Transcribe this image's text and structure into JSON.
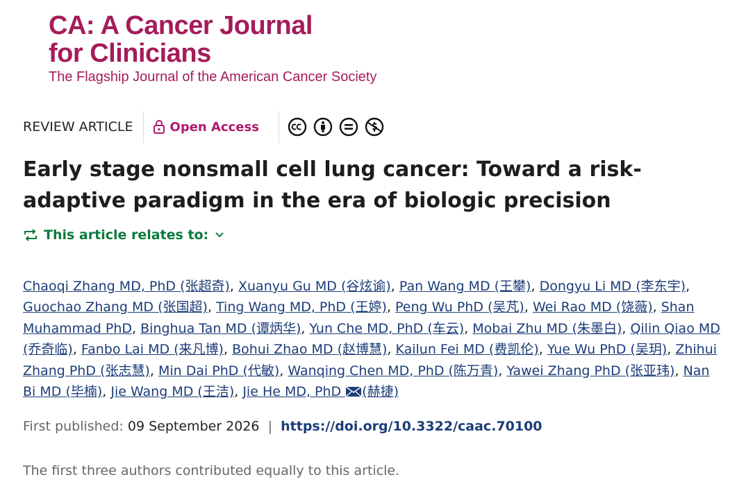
{
  "journal": {
    "title_line1": "CA: A Cancer Journal",
    "title_line2": "for Clinicians",
    "tagline": "The Flagship Journal of the American Cancer Society"
  },
  "article": {
    "type": "REVIEW ARTICLE",
    "access": "Open Access",
    "title": "Early stage nonsmall cell lung cancer: Toward a risk-adaptive paradigm in the era of biologic precision",
    "relates_to": "This article relates to:",
    "author_separator": ",",
    "authors": [
      {
        "name": "Chaoqi Zhang MD, PhD",
        "native": "(张超奇)"
      },
      {
        "name": "Xuanyu Gu MD",
        "native": "(谷炫谕)"
      },
      {
        "name": "Pan Wang MD",
        "native": "(王攀)"
      },
      {
        "name": "Dongyu Li MD",
        "native": "(李东宇)"
      },
      {
        "name": "Guochao Zhang MD",
        "native": "(张国超)"
      },
      {
        "name": "Ting Wang MD, PhD",
        "native": "(王婷)"
      },
      {
        "name": "Peng Wu PhD",
        "native": "(吴芃)"
      },
      {
        "name": "Wei Rao MD",
        "native": "(饶薇)"
      },
      {
        "name": "Shan Muhammad PhD",
        "native": ""
      },
      {
        "name": "Binghua Tan MD",
        "native": "(谭炳华)"
      },
      {
        "name": "Yun Che MD, PhD",
        "native": "(车云)"
      },
      {
        "name": "Mobai Zhu MD",
        "native": "(朱墨白)"
      },
      {
        "name": "Qilin Qiao MD",
        "native": "(乔奇临)"
      },
      {
        "name": "Fanbo Lai MD",
        "native": "(来凡博)"
      },
      {
        "name": "Bohui Zhao MD",
        "native": "(赵博慧)"
      },
      {
        "name": "Kailun Fei MD",
        "native": "(费凯伦)"
      },
      {
        "name": "Yue Wu PhD",
        "native": "(吴玥)"
      },
      {
        "name": "Zhihui Zhang PhD",
        "native": "(张志慧)"
      },
      {
        "name": "Min Dai PhD",
        "native": "(代敏)"
      },
      {
        "name": "Wanqing Chen MD, PhD",
        "native": "(陈万青)"
      },
      {
        "name": "Yawei Zhang PhD",
        "native": "(张亚玮)"
      },
      {
        "name": "Nan Bi MD",
        "native": "(毕楠)"
      },
      {
        "name": "Jie Wang MD",
        "native": "(王洁)"
      },
      {
        "name": "Jie He MD, PhD",
        "native": "(赫捷)",
        "email": true
      }
    ],
    "published_label": "First published:",
    "published_date": "09 September 2026",
    "published_separator": "|",
    "doi": "https://doi.org/10.3322/caac.70100",
    "note": "The first three authors contributed equally to this article."
  }
}
